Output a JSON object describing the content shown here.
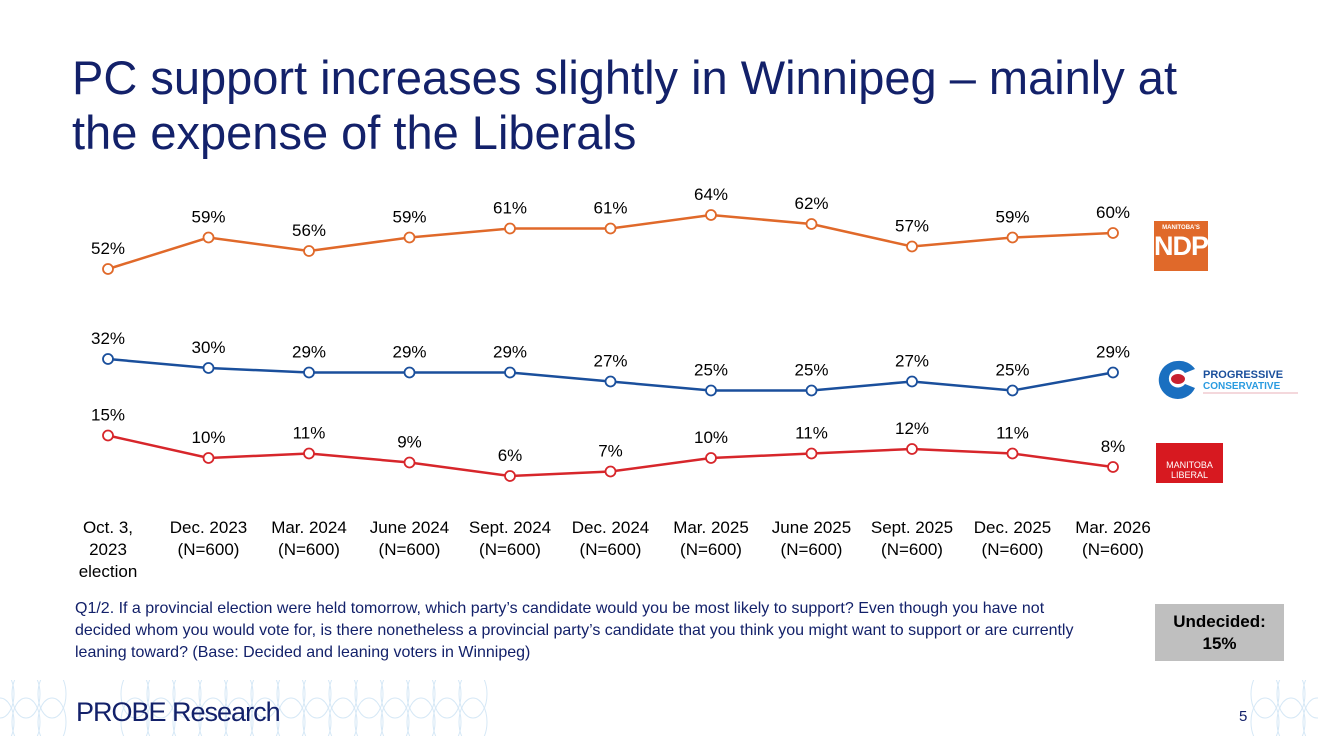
{
  "title": "PC support increases slightly in Winnipeg – mainly at the expense of the Liberals",
  "chart_data": {
    "type": "line",
    "categories": [
      "Oct. 3, 2023 election",
      "Dec. 2023 (N=600)",
      "Mar. 2024 (N=600)",
      "June 2024 (N=600)",
      "Sept. 2024 (N=600)",
      "Dec. 2024 (N=600)",
      "Mar. 2025 (N=600)",
      "June 2025 (N=600)",
      "Sept. 2025 (N=600)",
      "Dec. 2025 (N=600)",
      "Mar. 2026 (N=600)"
    ],
    "category_lines": [
      [
        "Oct. 3,",
        "2023",
        "election"
      ],
      [
        "Dec. 2023",
        "(N=600)"
      ],
      [
        "Mar. 2024",
        "(N=600)"
      ],
      [
        "June 2024",
        "(N=600)"
      ],
      [
        "Sept. 2024",
        "(N=600)"
      ],
      [
        "Dec. 2024",
        "(N=600)"
      ],
      [
        "Mar. 2025",
        "(N=600)"
      ],
      [
        "June 2025",
        "(N=600)"
      ],
      [
        "Sept. 2025",
        "(N=600)"
      ],
      [
        "Dec. 2025",
        "(N=600)"
      ],
      [
        "Mar. 2026",
        "(N=600)"
      ]
    ],
    "series": [
      {
        "party": "ndp",
        "color": "#e0692a",
        "values": [
          52,
          59,
          56,
          59,
          61,
          61,
          64,
          62,
          57,
          59,
          60
        ]
      },
      {
        "party": "pc",
        "color": "#1a4f9c",
        "values": [
          32,
          30,
          29,
          29,
          29,
          27,
          25,
          25,
          27,
          25,
          29
        ]
      },
      {
        "party": "liberal",
        "color": "#d7262b",
        "values": [
          15,
          10,
          11,
          9,
          6,
          7,
          10,
          11,
          12,
          11,
          8
        ]
      }
    ],
    "value_suffix": "%",
    "grid": false
  },
  "logos": {
    "ndp": {
      "small": "MANITOBA'S",
      "big": "NDP"
    },
    "pc": {
      "line1": "PROGRESSIVE",
      "line2": "CONSERVATIVE"
    },
    "liberal": {
      "line1": "MANITOBA",
      "line2": "LIBERAL"
    }
  },
  "question": "Q1/2. If a provincial election were held tomorrow, which party’s candidate would you be most likely to support? Even though you have not decided whom you would vote for, is there nonetheless a provincial party’s candidate that you think you might want to support or are currently leaning toward? (Base: Decided and leaning voters in Winnipeg)",
  "undecided": {
    "label": "Undecided:",
    "value": "15%"
  },
  "footer": {
    "brand": "PROBE Research",
    "page": "5"
  }
}
